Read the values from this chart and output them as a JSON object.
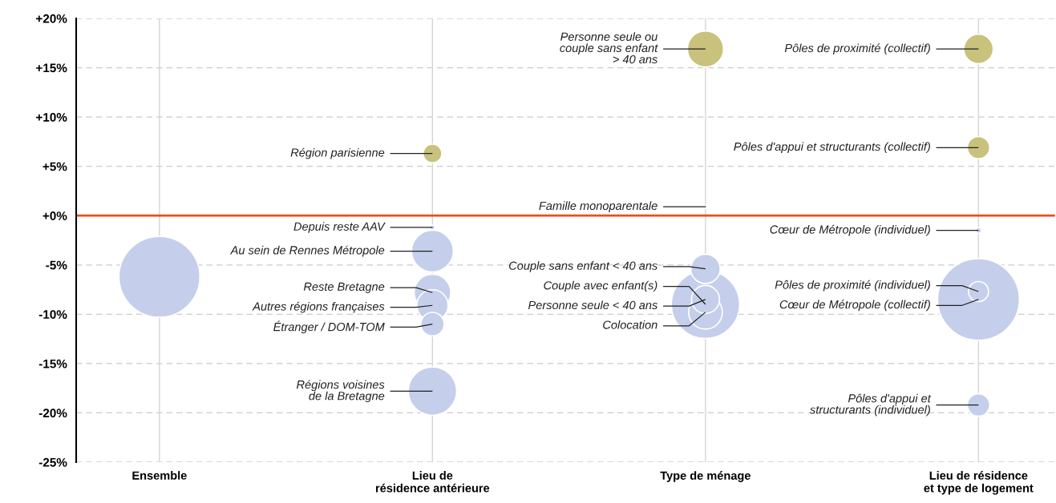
{
  "chart_data": {
    "type": "bubble",
    "categories": [
      "Ensemble",
      "Lieu de\nrésidence antérieure",
      "Type de ménage",
      "Lieu de résidence\net type de logement"
    ],
    "series": [
      {
        "x": [
          "Ensemble",
          "Lieu de\nrésidence antérieure",
          "Lieu de\nrésidence antérieure",
          "Lieu de\nrésidence antérieure",
          "Lieu de\nrésidence antérieure",
          "Lieu de\nrésidence antérieure",
          "Lieu de\nrésidence antérieure",
          "Lieu de\nrésidence antérieure",
          "Type de ménage",
          "Type de ménage",
          "Type de ménage",
          "Type de ménage",
          "Type de ménage",
          "Type de ménage",
          "Lieu de résidence\net type de logement",
          "Lieu de résidence\net type de logement",
          "Lieu de résidence\net type de logement",
          "Lieu de résidence\net type de logement",
          "Lieu de résidence\net type de logement",
          "Lieu de résidence\net type de logement"
        ],
        "values": [
          -6.2,
          6.3,
          -1.2,
          -7.8,
          -3.6,
          -9.1,
          -11.0,
          -17.8,
          16.9,
          0.9,
          -9.0,
          -9.8,
          -8.5,
          -5.4,
          16.9,
          6.9,
          -1.5,
          -8.5,
          -7.7,
          -19.2
        ],
        "sizes": [
          0.98,
          0.052,
          0.0035,
          0.2,
          0.26,
          0.146,
          0.082,
          0.35,
          0.195,
          0.0015,
          0.7,
          0.17,
          0.118,
          0.13,
          0.13,
          0.075,
          0.005,
          1.0,
          0.06,
          0.075
        ],
        "colors": [
          "#c5cfeb",
          "#c9c27c",
          "#c5cfeb",
          "#c5cfeb",
          "#c5cfeb",
          "#c5cfeb",
          "#c5cfeb",
          "#c5cfeb",
          "#c9c27c",
          "#c9c27c",
          "#c5cfeb",
          "#c5cfeb",
          "#c5cfeb",
          "#c5cfeb",
          "#c9c27c",
          "#c9c27c",
          "#c5cfeb",
          "#c5cfeb",
          "#c5cfeb",
          "#c5cfeb"
        ]
      }
    ],
    "ylim": [
      -25,
      20
    ],
    "yticks": [
      {
        "value": 20,
        "label": "+20%"
      },
      {
        "value": 15,
        "label": "+15%"
      },
      {
        "value": 10,
        "label": "+10%"
      },
      {
        "value": 5,
        "label": "+5%"
      },
      {
        "value": 0,
        "label": "+0%"
      },
      {
        "value": -5,
        "label": "-5%"
      },
      {
        "value": -10,
        "label": "-10%"
      },
      {
        "value": -15,
        "label": "-15%"
      },
      {
        "value": -20,
        "label": "-20%"
      },
      {
        "value": -25,
        "label": "-25%"
      }
    ],
    "grid": true,
    "ref_lines": [
      {
        "axis": "y",
        "value": 0,
        "color": "#e8501e"
      }
    ],
    "annotations": [
      {
        "text": "Région parisienne",
        "x": "Lieu de\nrésidence antérieure",
        "y": 6.3
      },
      {
        "text": "Depuis reste AAV",
        "x": "Lieu de\nrésidence antérieure",
        "y": -1.2
      },
      {
        "text": "Au sein de Rennes Métropole",
        "x": "Lieu de\nrésidence antérieure",
        "y": -3.6
      },
      {
        "text": "Reste Bretagne",
        "x": "Lieu de\nrésidence antérieure",
        "y": -7.8
      },
      {
        "text": "Autres régions françaises",
        "x": "Lieu de\nrésidence antérieure",
        "y": -9.1
      },
      {
        "text": "Étranger / DOM-TOM",
        "x": "Lieu de\nrésidence antérieure",
        "y": -11.0
      },
      {
        "text": "Régions voisines\nde la Bretagne",
        "x": "Lieu de\nrésidence antérieure",
        "y": -17.8
      },
      {
        "text": "Personne seule ou\ncouple sans enfant\n> 40 ans",
        "x": "Type de ménage",
        "y": 16.9
      },
      {
        "text": "Famille monoparentale",
        "x": "Type de ménage",
        "y": 0.9
      },
      {
        "text": "Couple sans enfant < 40 ans",
        "x": "Type de ménage",
        "y": -5.4
      },
      {
        "text": "Couple avec enfant(s)",
        "x": "Type de ménage",
        "y": -9.0
      },
      {
        "text": "Personne seule < 40 ans",
        "x": "Type de ménage",
        "y": -8.5
      },
      {
        "text": "Colocation",
        "x": "Type de ménage",
        "y": -9.8
      },
      {
        "text": "Pôles de proximité (collectif)",
        "x": "Lieu de résidence\net type de logement",
        "y": 16.9
      },
      {
        "text": "Pôles d'appui et structurants (collectif)",
        "x": "Lieu de résidence\net type de logement",
        "y": 6.9
      },
      {
        "text": "Cœur de Métropole (individuel)",
        "x": "Lieu de résidence\net type de logement",
        "y": -1.5
      },
      {
        "text": "Pôles de proximité (individuel)",
        "x": "Lieu de résidence\net type de logement",
        "y": -7.7
      },
      {
        "text": "Cœur de Métropole (collectif)",
        "x": "Lieu de résidence\net type de logement",
        "y": -8.5
      },
      {
        "text": "Pôles d'appui et\nstructurants (individuel)",
        "x": "Lieu de résidence\net type de logement",
        "y": -19.2
      }
    ]
  }
}
